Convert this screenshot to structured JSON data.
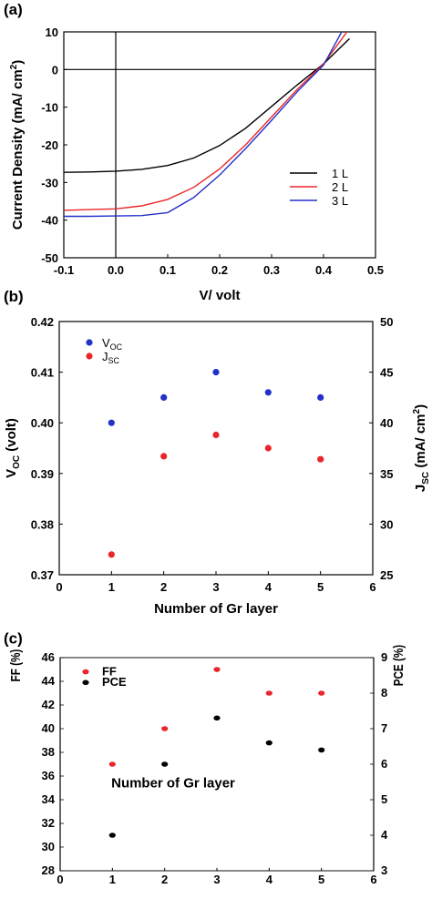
{
  "colors": {
    "black": "#000000",
    "red": "#e8262b",
    "blue": "#2431c8"
  },
  "chart_data": [
    {
      "panel_label": "(a)",
      "type": "line",
      "xlabel": "V/ volt",
      "ylabel": "Current Density (mA/ cm",
      "ylabel_sup": "2",
      "ylabel_end": ")",
      "xlim": [
        -0.1,
        0.5
      ],
      "ylim": [
        -50,
        10
      ],
      "xticks": [
        "-0.1",
        "0.0",
        "0.1",
        "0.2",
        "0.3",
        "0.4",
        "0.5"
      ],
      "yticks": [
        "-50",
        "-40",
        "-30",
        "-20",
        "-10",
        "0",
        "10"
      ],
      "reference_lines": {
        "x": 0,
        "y": 0
      },
      "legend_position": "right",
      "series": [
        {
          "name": "1 L",
          "color": "#000000",
          "x": [
            -0.1,
            -0.05,
            0,
            0.05,
            0.1,
            0.15,
            0.2,
            0.25,
            0.3,
            0.35,
            0.4,
            0.45
          ],
          "y": [
            -27.3,
            -27.2,
            -27.0,
            -26.5,
            -25.5,
            -23.5,
            -20.2,
            -15.6,
            -9.8,
            -4.0,
            1.5,
            8.2
          ]
        },
        {
          "name": "2 L",
          "color": "#e8262b",
          "x": [
            -0.1,
            -0.05,
            0,
            0.05,
            0.1,
            0.15,
            0.2,
            0.25,
            0.3,
            0.35,
            0.4,
            0.445
          ],
          "y": [
            -37.4,
            -37.2,
            -37.0,
            -36.2,
            -34.5,
            -31.3,
            -26.4,
            -20.0,
            -12.6,
            -5.2,
            1.5,
            10.0
          ]
        },
        {
          "name": "3 L",
          "color": "#2431c8",
          "x": [
            -0.1,
            -0.05,
            0,
            0.05,
            0.1,
            0.15,
            0.2,
            0.25,
            0.3,
            0.35,
            0.4,
            0.435
          ],
          "y": [
            -39.0,
            -39.0,
            -38.9,
            -38.8,
            -38.0,
            -34.0,
            -28.0,
            -21.0,
            -13.5,
            -5.8,
            1.2,
            10.0
          ]
        }
      ]
    },
    {
      "panel_label": "(b)",
      "type": "scatter",
      "xlabel": "Number of Gr layer",
      "ylabel_left": "V",
      "ylabel_left_sub": "OC",
      "ylabel_left_end": " (volt)",
      "ylabel_right": "J",
      "ylabel_right_sub": "SC",
      "ylabel_right_mid": " (mA/ cm",
      "ylabel_right_sup": "2",
      "ylabel_right_end": ")",
      "xlim": [
        0,
        6
      ],
      "ylim_left": [
        0.37,
        0.42
      ],
      "ylim_right": [
        25,
        50
      ],
      "xticks": [
        "0",
        "1",
        "2",
        "3",
        "4",
        "5",
        "6"
      ],
      "yticks_left": [
        "0.37",
        "0.38",
        "0.39",
        "0.40",
        "0.41",
        "0.42"
      ],
      "yticks_right": [
        "25",
        "30",
        "35",
        "40",
        "45",
        "50"
      ],
      "legend_position": "top-left",
      "series": [
        {
          "name": "V",
          "name_sub": "OC",
          "axis": "left",
          "color": "#2431c8",
          "x": [
            1,
            2,
            3,
            4,
            5
          ],
          "y": [
            0.4,
            0.405,
            0.41,
            0.406,
            0.405
          ]
        },
        {
          "name": "J",
          "name_sub": "SC",
          "axis": "right",
          "color": "#e8262b",
          "x": [
            1,
            2,
            3,
            4,
            5
          ],
          "y": [
            27.0,
            36.7,
            38.8,
            37.5,
            36.4
          ]
        }
      ]
    },
    {
      "panel_label": "(c)",
      "type": "scatter",
      "xlabel": "Number of Gr layer",
      "ylabel_left": "FF (%)",
      "ylabel_right": "PCE (%)",
      "xlim": [
        0,
        6
      ],
      "ylim_left": [
        28,
        46
      ],
      "ylim_right": [
        3,
        9
      ],
      "xticks": [
        "0",
        "1",
        "2",
        "3",
        "4",
        "5",
        "6"
      ],
      "yticks_left": [
        "28",
        "30",
        "32",
        "34",
        "36",
        "38",
        "40",
        "42",
        "44",
        "46"
      ],
      "yticks_right": [
        "3",
        "4",
        "5",
        "6",
        "7",
        "8",
        "9"
      ],
      "legend_position": "top-left",
      "series": [
        {
          "name": "FF",
          "axis": "left",
          "color": "#e8262b",
          "x": [
            1,
            2,
            3,
            4,
            5
          ],
          "y": [
            37,
            40,
            45,
            43,
            43
          ]
        },
        {
          "name": "PCE",
          "axis": "right",
          "color": "#000000",
          "x": [
            1,
            2,
            3,
            4,
            5
          ],
          "y": [
            4.0,
            6.0,
            7.3,
            6.6,
            6.4
          ]
        }
      ]
    }
  ]
}
